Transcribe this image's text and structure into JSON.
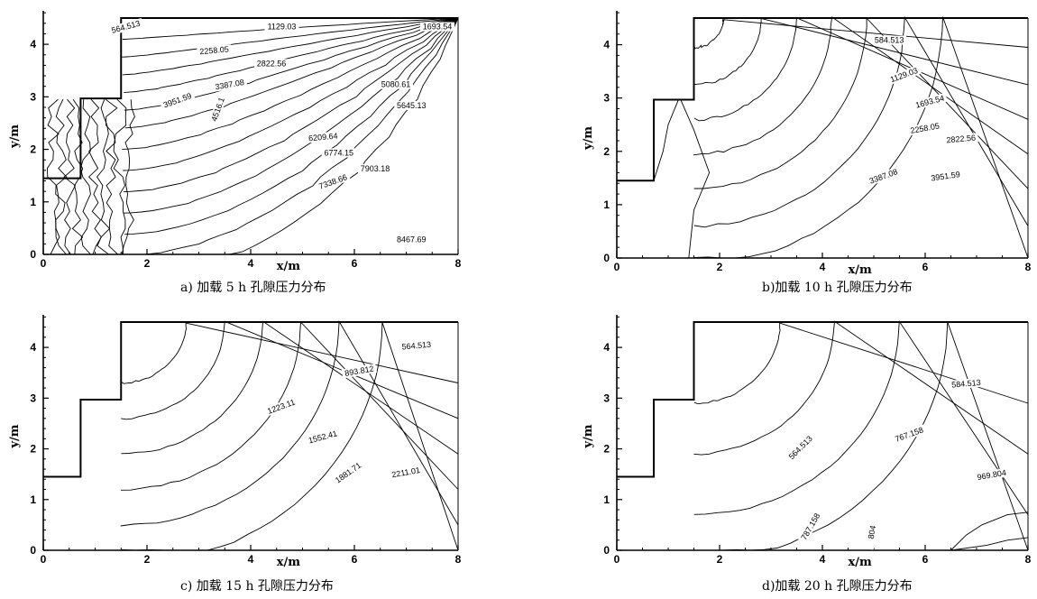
{
  "chart_data": [
    {
      "type": "contour",
      "caption": "a) 加载 5 h 孔隙压力分布",
      "xlabel": "x/m",
      "ylabel": "y/m",
      "xlim": [
        0,
        8
      ],
      "ylim": [
        0,
        4.5
      ],
      "xticks": [
        0,
        2,
        4,
        6,
        8
      ],
      "yticks": [
        0,
        1,
        2,
        3,
        4
      ],
      "levels": [
        "564.513",
        "1129.03",
        "1693.54",
        "2258.05",
        "2822.56",
        "3387.08",
        "3951.59",
        "4516.1",
        "5080.61",
        "5645.13",
        "6209.64",
        "6774.15",
        "7338.66",
        "7903.18",
        "8467.69"
      ]
    },
    {
      "type": "contour",
      "caption": "b)加载 10 h 孔隙压力分布",
      "xlabel": "x/m",
      "ylabel": "y/m",
      "xlim": [
        0,
        8
      ],
      "ylim": [
        0,
        4.5
      ],
      "xticks": [
        0,
        2,
        4,
        6,
        8
      ],
      "yticks": [
        0,
        1,
        2,
        3,
        4
      ],
      "levels": [
        "584.513",
        "1129.03",
        "1693.54",
        "2258.05",
        "2822.56",
        "3387.08",
        "3951.59"
      ]
    },
    {
      "type": "contour",
      "caption": "c) 加载 15 h 孔隙压力分布",
      "xlabel": "x/m",
      "ylabel": "y/m",
      "xlim": [
        0,
        8
      ],
      "ylim": [
        0,
        4.5
      ],
      "xticks": [
        0,
        2,
        4,
        6,
        8
      ],
      "yticks": [
        0,
        1,
        2,
        3,
        4
      ],
      "levels": [
        "564.513",
        "893.812",
        "1223.11",
        "1552.41",
        "1881.71",
        "2211.01"
      ]
    },
    {
      "type": "contour",
      "caption": "d)加载 20 h 孔隙压力分布",
      "xlabel": "x/m",
      "ylabel": "y/m",
      "xlim": [
        0,
        8
      ],
      "ylim": [
        0,
        4.5
      ],
      "xticks": [
        0,
        2,
        4,
        6,
        8
      ],
      "yticks": [
        0,
        1,
        2,
        3,
        4
      ],
      "levels": [
        "584.513",
        "564.513",
        "767.158",
        "969.804",
        "787.158",
        "804"
      ]
    }
  ]
}
